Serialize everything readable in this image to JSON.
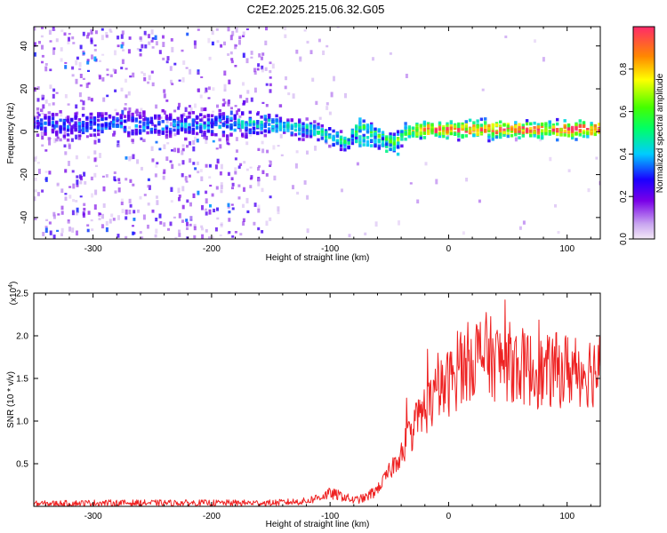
{
  "title": "C2E2.2025.215.06.32.G05",
  "chart_data": [
    {
      "type": "heatmap",
      "xlabel": "Height of straight line (km)",
      "ylabel": "Frequency (Hz)",
      "xlim": [
        -350,
        128
      ],
      "ylim": [
        -50,
        49
      ],
      "xticks": [
        -300,
        -200,
        -100,
        0,
        100
      ],
      "yticks": [
        -40,
        -20,
        0,
        20,
        40
      ],
      "colorbar": {
        "label": "Normalized spectral amplitude",
        "range": [
          0.0,
          1.0
        ],
        "ticks": [
          0.0,
          0.2,
          0.4,
          0.6,
          0.8
        ],
        "tick_labels": [
          "0.0",
          "0.2",
          "0.4",
          "0.6",
          "0.8"
        ],
        "colormap": "rainbow"
      },
      "ridge": [
        {
          "x": -345,
          "f": 3.0,
          "amp": 0.3
        },
        {
          "x": -300,
          "f": 3.0,
          "amp": 0.35
        },
        {
          "x": -250,
          "f": 3.0,
          "amp": 0.35
        },
        {
          "x": -200,
          "f": 3.5,
          "amp": 0.38
        },
        {
          "x": -160,
          "f": 4.0,
          "amp": 0.42
        },
        {
          "x": -130,
          "f": 2.0,
          "amp": 0.45
        },
        {
          "x": -110,
          "f": 0.0,
          "amp": 0.5
        },
        {
          "x": -95,
          "f": -3.0,
          "amp": 0.52
        },
        {
          "x": -85,
          "f": -5.0,
          "amp": 0.5
        },
        {
          "x": -75,
          "f": 3.0,
          "amp": 0.55
        },
        {
          "x": -65,
          "f": 0.0,
          "amp": 0.58
        },
        {
          "x": -55,
          "f": -3.0,
          "amp": 0.6
        },
        {
          "x": -45,
          "f": -5.0,
          "amp": 0.55
        },
        {
          "x": -35,
          "f": 0.0,
          "amp": 0.7
        },
        {
          "x": -20,
          "f": 1.0,
          "amp": 0.85
        },
        {
          "x": 0,
          "f": 1.0,
          "amp": 0.9
        },
        {
          "x": 50,
          "f": 1.0,
          "amp": 0.92
        },
        {
          "x": 100,
          "f": 1.0,
          "amp": 0.93
        },
        {
          "x": 128,
          "f": 1.0,
          "amp": 0.93
        }
      ]
    },
    {
      "type": "line",
      "xlabel": "Height of straight line (km)",
      "ylabel": "SNR (10 * v/v)",
      "y_multiplier": "(x10",
      "y_multiplier_exp": "4",
      "y_multiplier_close": ")",
      "xlim": [
        -350,
        128
      ],
      "ylim": [
        0,
        2.5
      ],
      "xticks": [
        -300,
        -200,
        -100,
        0,
        100
      ],
      "yticks": [
        0.5,
        1.0,
        1.5,
        2.0,
        2.5
      ],
      "color": "#ee2222",
      "series": [
        {
          "x": [
            -350,
            -300,
            -250,
            -200,
            -150,
            -120,
            -100,
            -90,
            -80,
            -70,
            -60,
            -50,
            -40,
            -30,
            -20,
            -10,
            0,
            10,
            20,
            30,
            40,
            50,
            60,
            70,
            80,
            90,
            100,
            110,
            120,
            128
          ],
          "values": [
            0.03,
            0.04,
            0.04,
            0.04,
            0.04,
            0.06,
            0.15,
            0.12,
            0.07,
            0.1,
            0.2,
            0.4,
            0.65,
            0.9,
            1.15,
            1.3,
            1.45,
            1.6,
            1.75,
            1.8,
            1.7,
            1.7,
            1.65,
            1.6,
            1.55,
            1.6,
            1.6,
            1.6,
            1.6,
            1.6
          ]
        }
      ]
    }
  ]
}
